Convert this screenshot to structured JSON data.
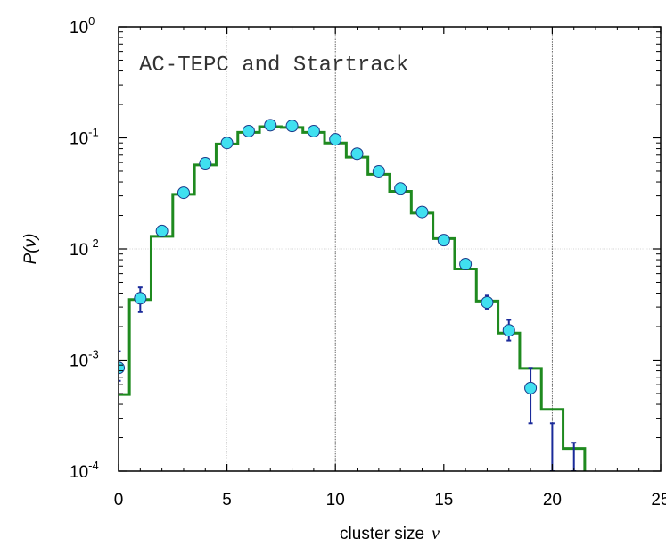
{
  "chart_data": {
    "type": "scatter",
    "title": "",
    "annotation": "AC-TEPC and Startrack",
    "xlabel": "cluster size",
    "xlabel_symbol": "ν",
    "ylabel": "P(ν)",
    "xlim": [
      0,
      25
    ],
    "ylim": [
      0.0001,
      1
    ],
    "yscale": "log",
    "grid": "vertical lines at x=5,10,20; horizontal line at y=1e-2",
    "x_ticks": [
      {
        "value": 0,
        "label": "0"
      },
      {
        "value": 5,
        "label": "5"
      },
      {
        "value": 10,
        "label": "10"
      },
      {
        "value": 15,
        "label": "15"
      },
      {
        "value": 20,
        "label": "20"
      },
      {
        "value": 25,
        "label": "25"
      }
    ],
    "y_ticks": [
      {
        "value": 1,
        "base": "10",
        "exp": "0"
      },
      {
        "value": 0.1,
        "base": "10",
        "exp": "-1"
      },
      {
        "value": 0.01,
        "base": "10",
        "exp": "-2"
      },
      {
        "value": 0.001,
        "base": "10",
        "exp": "-3"
      },
      {
        "value": 0.0001,
        "base": "10",
        "exp": "-4"
      }
    ],
    "series": [
      {
        "kind": "points_with_errorbars",
        "color": "#40e0f0",
        "edge_color": "#1a3a8a",
        "errorbar_color": "#1a2a9a",
        "x": [
          0,
          1,
          2,
          3,
          4,
          5,
          6,
          7,
          8,
          9,
          10,
          11,
          12,
          13,
          14,
          15,
          16,
          17,
          18,
          19,
          20,
          21
        ],
        "y": [
          0.00085,
          0.0036,
          0.0145,
          0.032,
          0.059,
          0.09,
          0.115,
          0.13,
          0.128,
          0.115,
          0.097,
          0.072,
          0.05,
          0.035,
          0.0215,
          0.012,
          0.0073,
          0.0033,
          0.00185,
          0.00056,
          null,
          null
        ],
        "y_err_low": [
          0.00065,
          0.0027,
          0.014,
          0.031,
          0.058,
          0.089,
          0.114,
          0.129,
          0.127,
          0.114,
          0.096,
          0.071,
          0.049,
          0.034,
          0.021,
          0.0118,
          0.0071,
          0.0029,
          0.0015,
          0.00027,
          0.0001,
          0.0001
        ],
        "y_err_high": [
          0.0012,
          0.0045,
          0.015,
          0.033,
          0.06,
          0.091,
          0.116,
          0.131,
          0.129,
          0.116,
          0.098,
          0.073,
          0.051,
          0.036,
          0.022,
          0.0122,
          0.0075,
          0.0038,
          0.0023,
          0.00085,
          0.00027,
          0.00018
        ]
      },
      {
        "kind": "step",
        "color": "#1f8a1f",
        "x": [
          0,
          1,
          2,
          3,
          4,
          5,
          6,
          7,
          8,
          9,
          10,
          11,
          12,
          13,
          14,
          15,
          16,
          17,
          18,
          19,
          20,
          21
        ],
        "y": [
          0.00049,
          0.0035,
          0.013,
          0.031,
          0.057,
          0.088,
          0.112,
          0.126,
          0.124,
          0.112,
          0.09,
          0.067,
          0.047,
          0.033,
          0.021,
          0.0124,
          0.0066,
          0.0034,
          0.00175,
          0.00084,
          0.00036,
          0.00016
        ]
      }
    ]
  }
}
